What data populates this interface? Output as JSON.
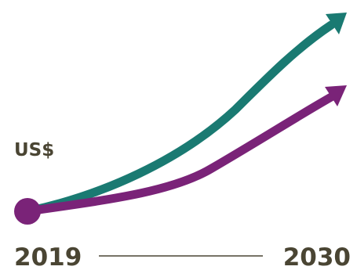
{
  "chart_data": {
    "type": "line",
    "unit_label": "US$",
    "x_start_label": "2019",
    "x_end_label": "2030",
    "series": [
      {
        "color": "#1a7a72"
      },
      {
        "color": "#7a2378"
      }
    ],
    "text_color": "#4a4533",
    "axis_color": "#4a4533",
    "start_marker_color": "#7a2378"
  }
}
